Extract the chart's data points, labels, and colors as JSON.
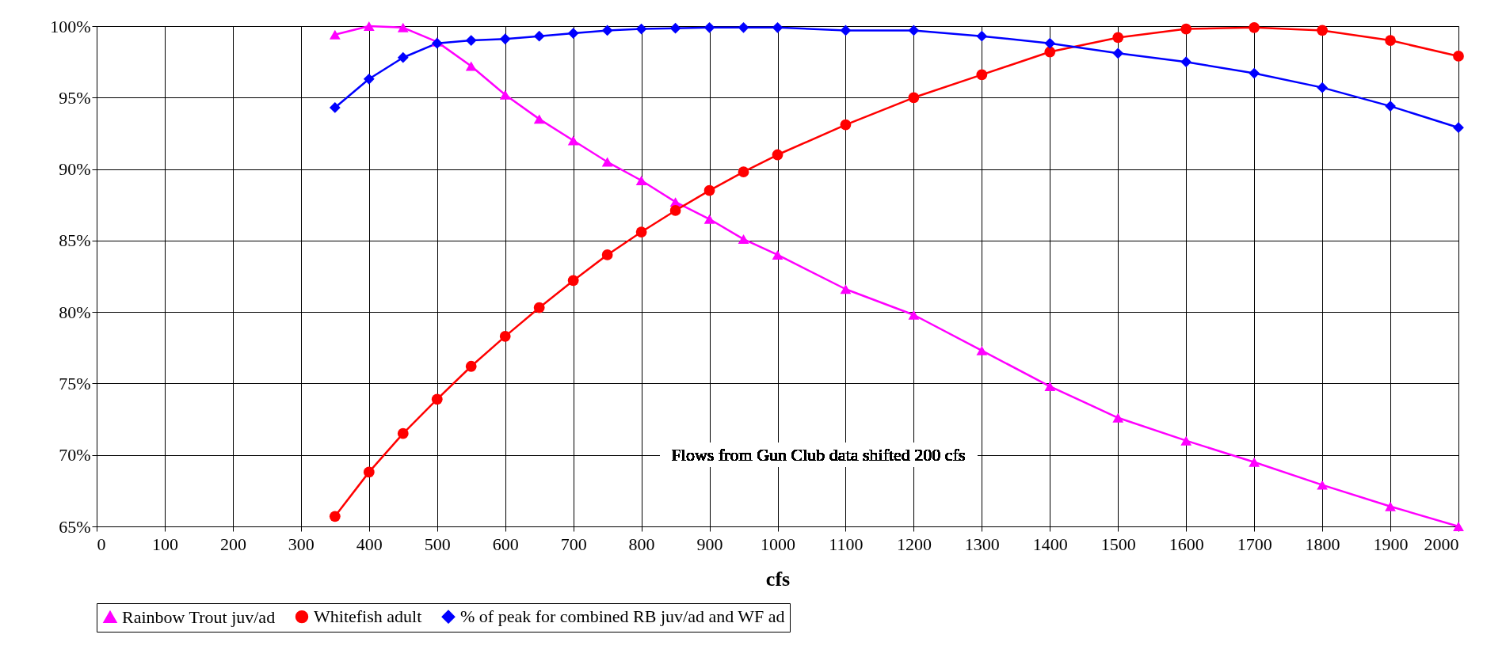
{
  "chart_data": {
    "type": "line",
    "xlabel": "cfs",
    "x": [
      350,
      400,
      450,
      500,
      550,
      600,
      650,
      700,
      750,
      800,
      850,
      900,
      950,
      1000,
      1100,
      1200,
      1300,
      1400,
      1500,
      1600,
      1700,
      1800,
      1900,
      2000
    ],
    "series": [
      {
        "name": "Rainbow Trout juv/ad",
        "color": "#ff00ff",
        "marker": "triangle",
        "values": [
          99.4,
          100,
          99.9,
          98.9,
          97.2,
          95.2,
          93.5,
          92.0,
          90.5,
          89.2,
          87.7,
          86.5,
          85.1,
          84.0,
          81.6,
          79.8,
          77.3,
          74.8,
          72.6,
          71.0,
          69.5,
          67.9,
          66.4,
          65.0
        ]
      },
      {
        "name": "Whitefish adult",
        "color": "#ff0000",
        "marker": "circle",
        "values": [
          65.7,
          68.8,
          71.5,
          73.9,
          76.2,
          78.3,
          80.3,
          82.2,
          84.0,
          85.6,
          87.1,
          88.5,
          89.8,
          91.0,
          93.1,
          95.0,
          96.6,
          98.2,
          99.2,
          99.8,
          99.9,
          99.7,
          99.0,
          97.9
        ]
      },
      {
        "name": "% of peak for combined RB juv/ad and WF ad",
        "color": "#0000ff",
        "marker": "diamond",
        "values": [
          94.3,
          96.3,
          97.8,
          98.8,
          99.0,
          99.1,
          99.3,
          99.5,
          99.7,
          99.8,
          99.85,
          99.9,
          99.9,
          99.9,
          99.7,
          99.7,
          99.3,
          98.8,
          98.1,
          97.5,
          96.7,
          95.7,
          94.4,
          92.9
        ]
      }
    ],
    "xlim": [
      0,
      2000
    ],
    "xticks": [
      0,
      100,
      200,
      300,
      400,
      500,
      600,
      700,
      800,
      900,
      1000,
      1100,
      1200,
      1300,
      1400,
      1500,
      1600,
      1700,
      1800,
      1900,
      2000
    ],
    "ylim": [
      65,
      100
    ],
    "yticks": [
      {
        "value": 65,
        "label": "65%"
      },
      {
        "value": 70,
        "label": "70%"
      },
      {
        "value": 75,
        "label": "75%"
      },
      {
        "value": 80,
        "label": "80%"
      },
      {
        "value": 85,
        "label": "85%"
      },
      {
        "value": 90,
        "label": "90%"
      },
      {
        "value": 95,
        "label": "95%"
      },
      {
        "value": 100,
        "label": "100%"
      }
    ],
    "grid": true,
    "legend": "bottom",
    "line_style": "solid",
    "annotations": [
      "Flows from Gun Club data shifted 200 cfs"
    ]
  }
}
